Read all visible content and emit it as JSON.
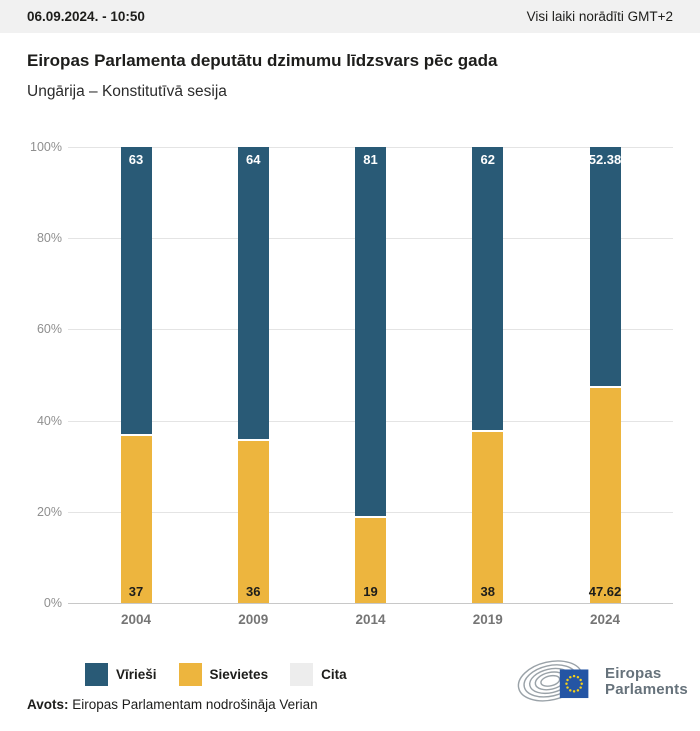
{
  "header": {
    "datetime": "06.09.2024. - 10:50",
    "timezone_note": "Visi laiki norādīti GMT+2"
  },
  "chart_data": {
    "type": "bar",
    "stacked": true,
    "title": "Eiropas Parlamenta deputātu dzimumu līdzsvars pēc gada",
    "subtitle": "Ungārija – Konstitutīvā sesija",
    "categories": [
      "2004",
      "2009",
      "2014",
      "2019",
      "2024"
    ],
    "series": [
      {
        "name": "Vīrieši",
        "color": "#295a76",
        "label_color": "#ffffff",
        "values": [
          63,
          64,
          81,
          62,
          52.38
        ],
        "labels": [
          "63",
          "64",
          "81",
          "62",
          "52.38"
        ]
      },
      {
        "name": "Sievietes",
        "color": "#edb53e",
        "label_color": "#1d1d1b",
        "values": [
          37,
          36,
          19,
          38,
          47.62
        ],
        "labels": [
          "37",
          "36",
          "19",
          "38",
          "47.62"
        ]
      },
      {
        "name": "Cita",
        "color": "#ededed",
        "label_color": "#1d1d1b",
        "values": [
          0,
          0,
          0,
          0,
          0
        ],
        "labels": [
          "",
          "",
          "",
          "",
          ""
        ]
      }
    ],
    "unit": "%",
    "ylim": [
      0,
      100
    ],
    "yticks": [
      {
        "label": "100%",
        "value": 100
      },
      {
        "label": "80%",
        "value": 80
      },
      {
        "label": "60%",
        "value": 60
      },
      {
        "label": "40%",
        "value": 40
      },
      {
        "label": "20%",
        "value": 20
      },
      {
        "label": "0%",
        "value": 0
      }
    ],
    "grid": true,
    "legend_position": "bottom"
  },
  "logo": {
    "line1": "Eiropas",
    "line2": "Parlaments",
    "flag_color": "#2455a4",
    "star_color": "#f7d117",
    "curve_color": "#9aa2a8"
  },
  "source": {
    "label": "Avots:",
    "text": " Eiropas Parlamentam nodrošināja Verian"
  }
}
